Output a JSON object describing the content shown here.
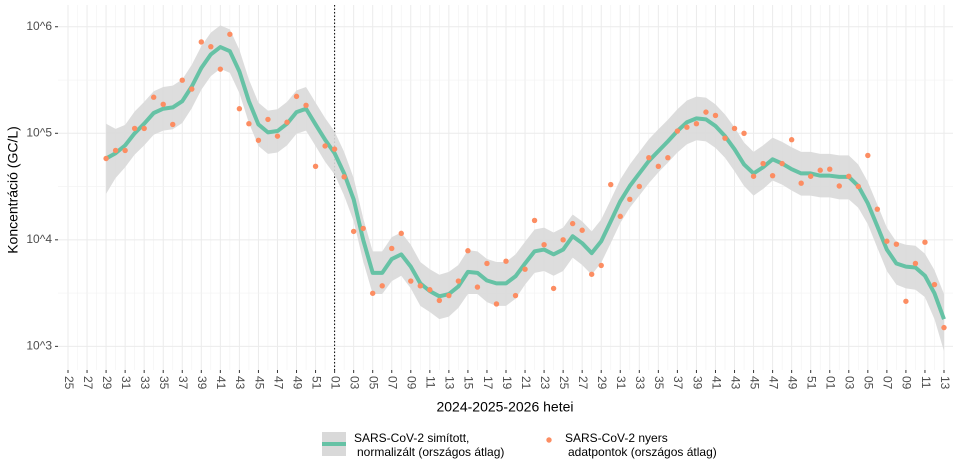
{
  "chart_data": {
    "type": "line",
    "y_scale": "log",
    "y_label": "Koncentráció (GC/L)",
    "x_label": "2024-2025-2026 hetei",
    "categories": [
      "25",
      null,
      "27",
      null,
      "29",
      null,
      "31",
      null,
      "33",
      null,
      "35",
      null,
      "37",
      null,
      "39",
      null,
      "41",
      null,
      "43",
      null,
      "45",
      null,
      "47",
      null,
      "49",
      null,
      "51",
      null,
      "01",
      null,
      "03",
      null,
      "05",
      null,
      "07",
      null,
      "09",
      null,
      "11",
      null,
      "13",
      null,
      "15",
      null,
      "17",
      null,
      "19",
      null,
      "21",
      null,
      "23",
      null,
      "25",
      null,
      "27",
      null,
      "29",
      null,
      "31",
      null,
      "33",
      null,
      "35",
      null,
      "37",
      null,
      "39",
      null,
      "41",
      null,
      "43",
      null,
      "45",
      null,
      "47",
      null,
      "49",
      null,
      "51",
      null,
      "01",
      null,
      "03",
      null,
      "05",
      null,
      "07",
      null,
      "09",
      null,
      "11",
      null,
      "13"
    ],
    "ylim": [
      600,
      1600000
    ],
    "yticks": [
      {
        "value": 1000,
        "label": "10^3"
      },
      {
        "value": 10000,
        "label": "10^4"
      },
      {
        "value": 100000,
        "label": "10^5"
      },
      {
        "value": 1000000,
        "label": "10^6"
      }
    ],
    "grid": true,
    "reference_line": {
      "category_index": 28,
      "style": "dotted"
    },
    "legend": "bottom",
    "series": [
      {
        "name": "SARS-CoV-2 simított,\nnormalizált (országos átlag)",
        "mark": "smooth",
        "color": "#66c2a5",
        "band_color": "#d9d9d9",
        "values": [
          null,
          null,
          null,
          null,
          58000,
          65000,
          77000,
          100000,
          123000,
          155000,
          170000,
          175000,
          200000,
          275000,
          410000,
          550000,
          645000,
          590000,
          380000,
          200000,
          121000,
          102000,
          105000,
          123000,
          158000,
          170000,
          121000,
          87000,
          65000,
          42000,
          24000,
          10000,
          4900,
          4900,
          6600,
          7300,
          5600,
          3900,
          3300,
          2950,
          3100,
          3650,
          5000,
          4900,
          4150,
          3900,
          3900,
          4550,
          6000,
          7800,
          8100,
          7300,
          8100,
          10800,
          9300,
          7500,
          9700,
          14900,
          23000,
          32000,
          42000,
          55000,
          68000,
          84000,
          105000,
          127000,
          138000,
          135000,
          117000,
          94000,
          71000,
          51000,
          42000,
          48000,
          57000,
          52000,
          46000,
          42000,
          42000,
          40000,
          40000,
          39000,
          39000,
          32000,
          22000,
          13400,
          8100,
          6000,
          5600,
          5500,
          4600,
          3150,
          1800
        ],
        "lower": [
          null,
          null,
          null,
          null,
          27000,
          38000,
          48000,
          63000,
          77000,
          97000,
          106000,
          109000,
          125000,
          172000,
          256000,
          344000,
          403000,
          369000,
          238000,
          125000,
          76000,
          64000,
          66000,
          77000,
          99000,
          106000,
          76000,
          54000,
          41000,
          26000,
          15000,
          6300,
          3100,
          3100,
          4100,
          4600,
          3500,
          2400,
          2100,
          1800,
          1900,
          2300,
          3100,
          3100,
          2600,
          2400,
          2400,
          2800,
          3800,
          4900,
          5100,
          4600,
          5100,
          6800,
          5800,
          4700,
          6100,
          9300,
          14400,
          20000,
          26000,
          34000,
          43000,
          53000,
          66000,
          79000,
          86000,
          84000,
          73000,
          59000,
          44000,
          32000,
          26000,
          30000,
          36000,
          33000,
          29000,
          26000,
          26000,
          25000,
          25000,
          24000,
          24000,
          20000,
          14000,
          8400,
          5100,
          3800,
          3500,
          3400,
          2900,
          1800,
          900
        ],
        "upper": [
          null,
          null,
          null,
          null,
          123000,
          110000,
          120000,
          160000,
          197000,
          248000,
          272000,
          280000,
          320000,
          440000,
          656000,
          880000,
          1030000,
          944000,
          608000,
          320000,
          194000,
          163000,
          168000,
          197000,
          253000,
          272000,
          194000,
          139000,
          104000,
          67000,
          38000,
          16000,
          7800,
          7800,
          10600,
          11700,
          9000,
          6200,
          5300,
          4700,
          5000,
          5800,
          8000,
          7800,
          6600,
          6200,
          6200,
          7300,
          9600,
          12500,
          13000,
          11700,
          13000,
          17300,
          14900,
          12000,
          15500,
          23800,
          36800,
          51000,
          67000,
          88000,
          109000,
          134000,
          168000,
          203000,
          221000,
          216000,
          187000,
          150000,
          114000,
          82000,
          67000,
          77000,
          91000,
          83000,
          74000,
          67000,
          67000,
          64000,
          64000,
          62000,
          62000,
          51000,
          35000,
          21400,
          13000,
          9600,
          9000,
          8800,
          7400,
          5200,
          3100
        ]
      },
      {
        "name": "SARS-CoV-2 nyers\nadatpontok (országos átlag)",
        "mark": "point",
        "color": "#fc8d62",
        "values": [
          null,
          null,
          null,
          null,
          58000,
          69000,
          69000,
          111000,
          111000,
          218000,
          187000,
          121000,
          315000,
          260000,
          720000,
          650000,
          400000,
          850000,
          170000,
          123000,
          86000,
          135000,
          94000,
          127000,
          222000,
          183000,
          49000,
          76000,
          71000,
          39000,
          12000,
          12800,
          3150,
          3700,
          8300,
          11500,
          4100,
          3700,
          3400,
          2700,
          3000,
          4100,
          7900,
          3600,
          6000,
          2500,
          6300,
          3000,
          5300,
          15200,
          9000,
          3500,
          10000,
          14200,
          12300,
          4750,
          5750,
          33000,
          16600,
          24000,
          31700,
          59000,
          49000,
          59000,
          105000,
          114000,
          123000,
          158000,
          147000,
          90000,
          111000,
          100000,
          39500,
          52000,
          40000,
          52000,
          87000,
          34000,
          39500,
          45000,
          46000,
          32000,
          39500,
          31700,
          62000,
          19400,
          9700,
          9100,
          2650,
          6000,
          9500,
          3800,
          1500
        ]
      }
    ]
  }
}
